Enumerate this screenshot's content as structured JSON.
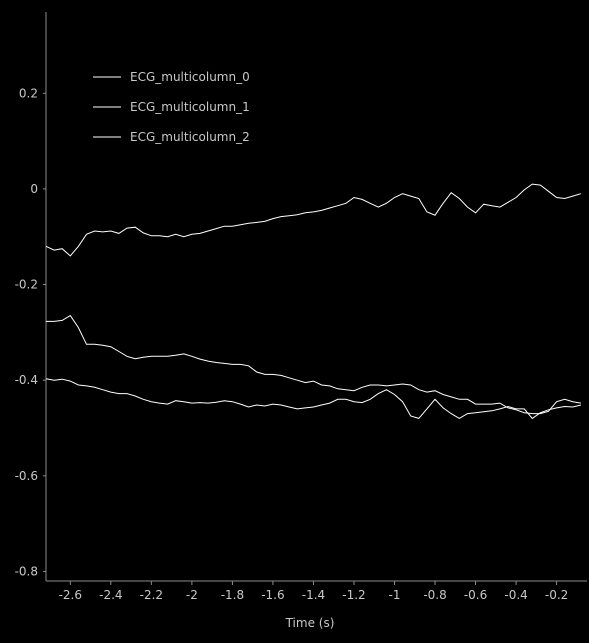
{
  "chart_data": {
    "type": "line",
    "title": "",
    "xlabel": "Time (s)",
    "ylabel": "",
    "xlim": [
      -2.72,
      -0.05
    ],
    "ylim": [
      -0.82,
      0.37
    ],
    "x_ticks": [
      -2.6,
      -2.4,
      -2.2,
      -2,
      -1.8,
      -1.6,
      -1.4,
      -1.2,
      -1,
      -0.8,
      -0.6,
      -0.4,
      -0.2
    ],
    "x_tick_labels": [
      "-2.6",
      "-2.4",
      "-2.2",
      "-2",
      "-1.8",
      "-1.6",
      "-1.4",
      "-1.2",
      "-1",
      "-0.8",
      "-0.6",
      "-0.4",
      "-0.2"
    ],
    "y_ticks": [
      0.2,
      0,
      -0.2,
      -0.4,
      -0.6,
      -0.8
    ],
    "y_tick_labels": [
      "0.2",
      "0",
      "-0.2",
      "-0.4",
      "-0.6",
      "-0.8"
    ],
    "grid": false,
    "legend_position": "top-left",
    "line_color": "#ffffff",
    "background": "#000000",
    "series": [
      {
        "name": "ECG_multicolumn_0",
        "x": [
          -2.72,
          -2.68,
          -2.64,
          -2.6,
          -2.56,
          -2.52,
          -2.48,
          -2.44,
          -2.4,
          -2.36,
          -2.32,
          -2.28,
          -2.24,
          -2.2,
          -2.16,
          -2.12,
          -2.08,
          -2.04,
          -2.0,
          -1.96,
          -1.92,
          -1.88,
          -1.84,
          -1.8,
          -1.76,
          -1.72,
          -1.68,
          -1.64,
          -1.6,
          -1.56,
          -1.52,
          -1.48,
          -1.44,
          -1.4,
          -1.36,
          -1.32,
          -1.28,
          -1.24,
          -1.2,
          -1.16,
          -1.12,
          -1.08,
          -1.04,
          -1.0,
          -0.96,
          -0.92,
          -0.88,
          -0.84,
          -0.8,
          -0.76,
          -0.72,
          -0.68,
          -0.64,
          -0.6,
          -0.56,
          -0.52,
          -0.48,
          -0.44,
          -0.4,
          -0.36,
          -0.32,
          -0.28,
          -0.24,
          -0.2,
          -0.16,
          -0.12,
          -0.08
        ],
        "y": [
          -0.12,
          -0.128,
          -0.125,
          -0.14,
          -0.12,
          -0.095,
          -0.088,
          -0.09,
          -0.088,
          -0.093,
          -0.082,
          -0.08,
          -0.092,
          -0.098,
          -0.098,
          -0.1,
          -0.095,
          -0.1,
          -0.095,
          -0.093,
          -0.088,
          -0.083,
          -0.078,
          -0.078,
          -0.075,
          -0.072,
          -0.07,
          -0.068,
          -0.062,
          -0.058,
          -0.056,
          -0.054,
          -0.05,
          -0.048,
          -0.045,
          -0.04,
          -0.035,
          -0.03,
          -0.018,
          -0.022,
          -0.03,
          -0.038,
          -0.03,
          -0.018,
          -0.01,
          -0.015,
          -0.02,
          -0.048,
          -0.055,
          -0.03,
          -0.008,
          -0.02,
          -0.038,
          -0.05,
          -0.032,
          -0.035,
          -0.038,
          -0.028,
          -0.018,
          -0.002,
          0.01,
          0.008,
          -0.005,
          -0.018,
          -0.02,
          -0.015,
          -0.01
        ]
      },
      {
        "name": "ECG_multicolumn_1",
        "x": [
          -2.72,
          -2.68,
          -2.64,
          -2.6,
          -2.56,
          -2.52,
          -2.48,
          -2.44,
          -2.4,
          -2.36,
          -2.32,
          -2.28,
          -2.24,
          -2.2,
          -2.16,
          -2.12,
          -2.08,
          -2.04,
          -2.0,
          -1.96,
          -1.92,
          -1.88,
          -1.84,
          -1.8,
          -1.76,
          -1.72,
          -1.68,
          -1.64,
          -1.6,
          -1.56,
          -1.52,
          -1.48,
          -1.44,
          -1.4,
          -1.36,
          -1.32,
          -1.28,
          -1.24,
          -1.2,
          -1.16,
          -1.12,
          -1.08,
          -1.04,
          -1.0,
          -0.96,
          -0.92,
          -0.88,
          -0.84,
          -0.8,
          -0.76,
          -0.72,
          -0.68,
          -0.64,
          -0.6,
          -0.56,
          -0.52,
          -0.48,
          -0.44,
          -0.4,
          -0.36,
          -0.32,
          -0.28,
          -0.24,
          -0.2,
          -0.16,
          -0.12,
          -0.08
        ],
        "y": [
          -0.277,
          -0.277,
          -0.275,
          -0.265,
          -0.29,
          -0.325,
          -0.325,
          -0.327,
          -0.33,
          -0.34,
          -0.35,
          -0.355,
          -0.352,
          -0.35,
          -0.35,
          -0.35,
          -0.348,
          -0.345,
          -0.35,
          -0.356,
          -0.36,
          -0.363,
          -0.365,
          -0.367,
          -0.367,
          -0.37,
          -0.383,
          -0.388,
          -0.388,
          -0.39,
          -0.395,
          -0.4,
          -0.405,
          -0.402,
          -0.41,
          -0.412,
          -0.418,
          -0.42,
          -0.422,
          -0.415,
          -0.41,
          -0.41,
          -0.412,
          -0.41,
          -0.408,
          -0.41,
          -0.42,
          -0.425,
          -0.422,
          -0.43,
          -0.435,
          -0.44,
          -0.44,
          -0.45,
          -0.45,
          -0.45,
          -0.448,
          -0.458,
          -0.462,
          -0.468,
          -0.47,
          -0.47,
          -0.465,
          -0.445,
          -0.44,
          -0.445,
          -0.448
        ]
      },
      {
        "name": "ECG_multicolumn_2",
        "x": [
          -2.72,
          -2.68,
          -2.64,
          -2.6,
          -2.56,
          -2.52,
          -2.48,
          -2.44,
          -2.4,
          -2.36,
          -2.32,
          -2.28,
          -2.24,
          -2.2,
          -2.16,
          -2.12,
          -2.08,
          -2.04,
          -2.0,
          -1.96,
          -1.92,
          -1.88,
          -1.84,
          -1.8,
          -1.76,
          -1.72,
          -1.68,
          -1.64,
          -1.6,
          -1.56,
          -1.52,
          -1.48,
          -1.44,
          -1.4,
          -1.36,
          -1.32,
          -1.28,
          -1.24,
          -1.2,
          -1.16,
          -1.12,
          -1.08,
          -1.04,
          -1.0,
          -0.96,
          -0.92,
          -0.88,
          -0.84,
          -0.8,
          -0.76,
          -0.72,
          -0.68,
          -0.64,
          -0.6,
          -0.56,
          -0.52,
          -0.48,
          -0.44,
          -0.4,
          -0.36,
          -0.32,
          -0.28,
          -0.24,
          -0.2,
          -0.16,
          -0.12,
          -0.08
        ],
        "y": [
          -0.397,
          -0.4,
          -0.398,
          -0.402,
          -0.41,
          -0.412,
          -0.415,
          -0.42,
          -0.425,
          -0.428,
          -0.428,
          -0.433,
          -0.44,
          -0.445,
          -0.448,
          -0.45,
          -0.443,
          -0.445,
          -0.448,
          -0.447,
          -0.448,
          -0.446,
          -0.443,
          -0.445,
          -0.45,
          -0.456,
          -0.452,
          -0.454,
          -0.45,
          -0.452,
          -0.456,
          -0.46,
          -0.458,
          -0.456,
          -0.452,
          -0.448,
          -0.44,
          -0.44,
          -0.445,
          -0.447,
          -0.44,
          -0.428,
          -0.42,
          -0.43,
          -0.445,
          -0.475,
          -0.48,
          -0.46,
          -0.44,
          -0.458,
          -0.47,
          -0.48,
          -0.47,
          -0.468,
          -0.466,
          -0.464,
          -0.46,
          -0.455,
          -0.46,
          -0.46,
          -0.48,
          -0.468,
          -0.462,
          -0.458,
          -0.455,
          -0.456,
          -0.452
        ]
      }
    ]
  }
}
